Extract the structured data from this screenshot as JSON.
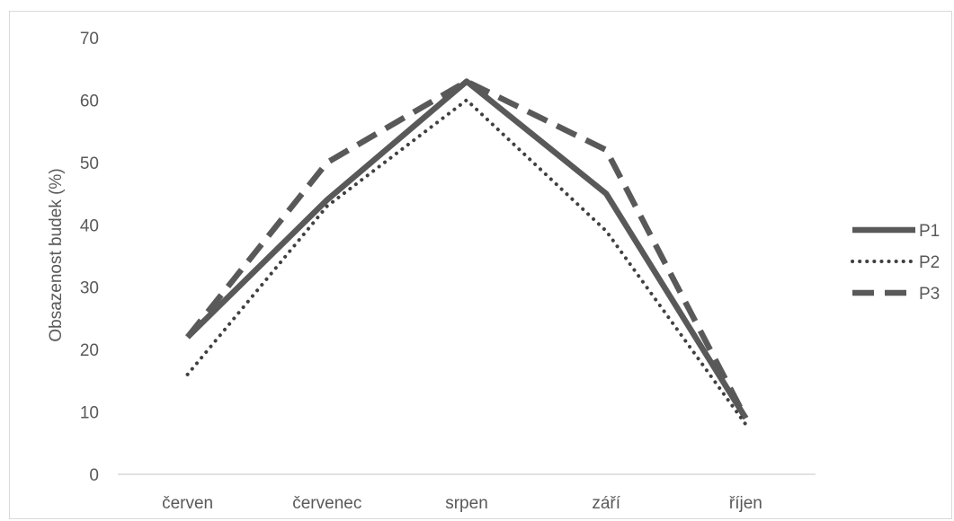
{
  "chart_data": {
    "type": "line",
    "title": "",
    "xlabel": "",
    "ylabel": "Obsazenost budek (%)",
    "ylim": [
      0,
      70
    ],
    "y_ticks": [
      "0",
      "10",
      "20",
      "30",
      "40",
      "50",
      "60",
      "70"
    ],
    "categories": [
      "červen",
      "červenec",
      "srpen",
      "září",
      "říjen"
    ],
    "grid": false,
    "legend_position": "right",
    "series": [
      {
        "name": "P1",
        "style": "solid",
        "color": "#595959",
        "values": [
          22,
          44,
          63,
          45,
          9
        ]
      },
      {
        "name": "P2",
        "style": "dotted",
        "color": "#404040",
        "values": [
          16,
          43,
          60,
          39,
          8
        ]
      },
      {
        "name": "P3",
        "style": "dashed",
        "color": "#595959",
        "values": [
          22,
          50,
          63,
          52,
          9
        ]
      }
    ]
  }
}
